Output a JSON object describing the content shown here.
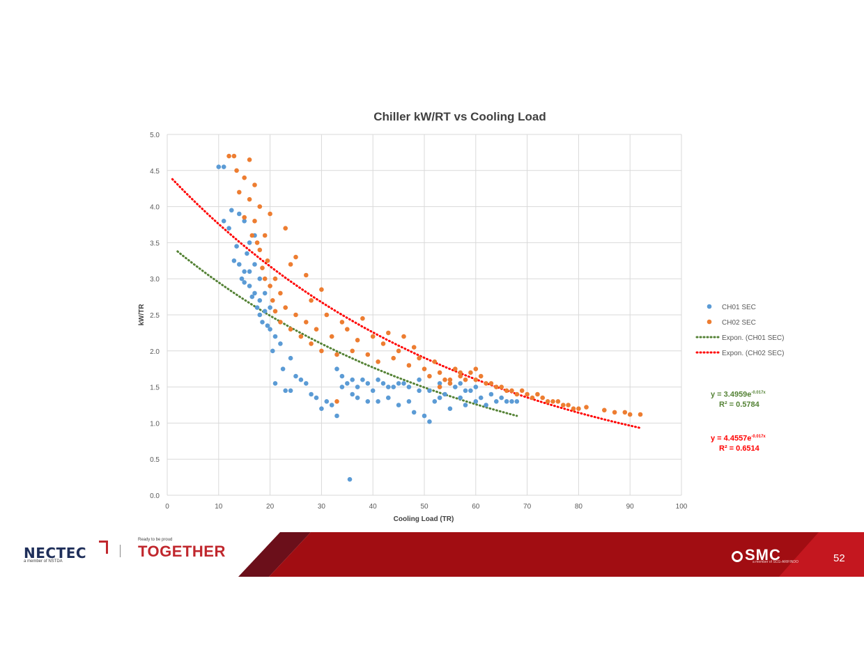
{
  "chart_data": {
    "type": "scatter",
    "title": "Chiller kW/RT vs Cooling Load",
    "xlabel": "Cooling Load (TR)",
    "ylabel": "kW/TR",
    "xlim": [
      0,
      100
    ],
    "ylim": [
      0,
      5
    ],
    "x_ticks": [
      "0",
      "10",
      "20",
      "30",
      "40",
      "50",
      "60",
      "70",
      "80",
      "90",
      "100"
    ],
    "y_ticks": [
      "0.0",
      "0.5",
      "1.0",
      "1.5",
      "2.0",
      "2.5",
      "3.0",
      "3.5",
      "4.0",
      "4.5",
      "5.0"
    ],
    "grid": true,
    "legend_position": "right",
    "series": [
      {
        "name": "CH01 SEC",
        "color": "#5b9bd5",
        "points": [
          [
            10,
            4.55
          ],
          [
            11,
            4.55
          ],
          [
            11,
            3.8
          ],
          [
            12,
            3.7
          ],
          [
            12.5,
            3.95
          ],
          [
            13,
            3.25
          ],
          [
            13.5,
            3.45
          ],
          [
            14,
            3.9
          ],
          [
            14,
            3.2
          ],
          [
            14.5,
            3.0
          ],
          [
            15,
            3.8
          ],
          [
            15,
            3.1
          ],
          [
            15,
            2.95
          ],
          [
            15.5,
            3.35
          ],
          [
            16,
            3.5
          ],
          [
            16,
            3.1
          ],
          [
            16,
            2.9
          ],
          [
            16.5,
            2.75
          ],
          [
            17,
            3.6
          ],
          [
            17,
            3.2
          ],
          [
            17,
            2.8
          ],
          [
            17.5,
            2.6
          ],
          [
            18,
            3.0
          ],
          [
            18,
            2.7
          ],
          [
            18,
            2.5
          ],
          [
            18.5,
            2.4
          ],
          [
            19,
            2.8
          ],
          [
            19,
            2.55
          ],
          [
            19.5,
            2.35
          ],
          [
            20,
            2.6
          ],
          [
            20,
            2.3
          ],
          [
            20.5,
            2.0
          ],
          [
            21,
            2.2
          ],
          [
            21,
            1.55
          ],
          [
            22,
            2.1
          ],
          [
            22.5,
            1.75
          ],
          [
            23,
            1.45
          ],
          [
            24,
            1.45
          ],
          [
            24,
            1.9
          ],
          [
            25,
            1.65
          ],
          [
            26,
            1.6
          ],
          [
            27,
            1.55
          ],
          [
            28,
            1.4
          ],
          [
            29,
            1.35
          ],
          [
            30,
            1.2
          ],
          [
            31,
            1.3
          ],
          [
            32,
            1.25
          ],
          [
            33,
            1.1
          ],
          [
            34,
            1.65
          ],
          [
            35,
            1.55
          ],
          [
            35.5,
            0.22
          ],
          [
            36,
            1.4
          ],
          [
            37,
            1.5
          ],
          [
            38,
            1.6
          ],
          [
            39,
            1.55
          ],
          [
            40,
            1.45
          ],
          [
            41,
            1.3
          ],
          [
            42,
            1.55
          ],
          [
            43,
            1.35
          ],
          [
            44,
            1.5
          ],
          [
            45,
            1.25
          ],
          [
            46,
            1.55
          ],
          [
            47,
            1.3
          ],
          [
            48,
            1.15
          ],
          [
            49,
            1.45
          ],
          [
            50,
            1.1
          ],
          [
            51,
            1.02
          ],
          [
            52,
            1.3
          ],
          [
            53,
            1.55
          ],
          [
            54,
            1.4
          ],
          [
            55,
            1.2
          ],
          [
            56,
            1.5
          ],
          [
            57,
            1.35
          ],
          [
            58,
            1.25
          ],
          [
            59,
            1.45
          ],
          [
            60,
            1.3
          ],
          [
            61,
            1.35
          ],
          [
            62,
            1.25
          ],
          [
            63,
            1.4
          ],
          [
            64,
            1.3
          ],
          [
            65,
            1.35
          ],
          [
            66,
            1.3
          ],
          [
            67,
            1.3
          ],
          [
            68,
            1.3
          ],
          [
            33,
            1.75
          ],
          [
            34,
            1.5
          ],
          [
            36,
            1.6
          ],
          [
            37,
            1.35
          ],
          [
            39,
            1.3
          ],
          [
            41,
            1.6
          ],
          [
            43,
            1.5
          ],
          [
            45,
            1.55
          ],
          [
            47,
            1.5
          ],
          [
            49,
            1.6
          ],
          [
            51,
            1.45
          ],
          [
            53,
            1.35
          ],
          [
            55,
            1.55
          ],
          [
            57,
            1.55
          ],
          [
            58,
            1.45
          ],
          [
            60,
            1.5
          ]
        ]
      },
      {
        "name": "CH02 SEC",
        "color": "#ed7d31",
        "points": [
          [
            12,
            4.7
          ],
          [
            13,
            4.7
          ],
          [
            13.5,
            4.5
          ],
          [
            14,
            4.2
          ],
          [
            15,
            4.4
          ],
          [
            15,
            3.85
          ],
          [
            16,
            4.65
          ],
          [
            16,
            4.1
          ],
          [
            16.5,
            3.6
          ],
          [
            17,
            4.3
          ],
          [
            17,
            3.8
          ],
          [
            17.5,
            3.5
          ],
          [
            18,
            4.0
          ],
          [
            18,
            3.4
          ],
          [
            18.5,
            3.15
          ],
          [
            19,
            3.6
          ],
          [
            19,
            3.0
          ],
          [
            19.5,
            3.25
          ],
          [
            20,
            3.9
          ],
          [
            20,
            2.9
          ],
          [
            20.5,
            2.7
          ],
          [
            21,
            3.0
          ],
          [
            21,
            2.55
          ],
          [
            22,
            2.8
          ],
          [
            22,
            2.4
          ],
          [
            23,
            3.7
          ],
          [
            23,
            2.6
          ],
          [
            24,
            2.3
          ],
          [
            24,
            3.2
          ],
          [
            25,
            3.3
          ],
          [
            25,
            2.5
          ],
          [
            26,
            2.2
          ],
          [
            27,
            3.05
          ],
          [
            27,
            2.4
          ],
          [
            28,
            2.7
          ],
          [
            28,
            2.1
          ],
          [
            29,
            2.3
          ],
          [
            30,
            2.85
          ],
          [
            30,
            2.0
          ],
          [
            31,
            2.5
          ],
          [
            32,
            2.2
          ],
          [
            33,
            1.95
          ],
          [
            33,
            1.3
          ],
          [
            34,
            2.4
          ],
          [
            35,
            2.3
          ],
          [
            36,
            2.0
          ],
          [
            37,
            2.15
          ],
          [
            38,
            2.45
          ],
          [
            39,
            1.95
          ],
          [
            40,
            2.2
          ],
          [
            41,
            1.85
          ],
          [
            42,
            2.1
          ],
          [
            43,
            2.25
          ],
          [
            44,
            1.9
          ],
          [
            45,
            2.0
          ],
          [
            46,
            2.2
          ],
          [
            47,
            1.8
          ],
          [
            48,
            2.05
          ],
          [
            49,
            1.9
          ],
          [
            50,
            1.75
          ],
          [
            51,
            1.65
          ],
          [
            52,
            1.85
          ],
          [
            53,
            1.7
          ],
          [
            54,
            1.6
          ],
          [
            55,
            1.55
          ],
          [
            56,
            1.75
          ],
          [
            57,
            1.65
          ],
          [
            58,
            1.6
          ],
          [
            59,
            1.7
          ],
          [
            60,
            1.6
          ],
          [
            61,
            1.65
          ],
          [
            62,
            1.55
          ],
          [
            63,
            1.55
          ],
          [
            64,
            1.5
          ],
          [
            65,
            1.5
          ],
          [
            66,
            1.45
          ],
          [
            67,
            1.45
          ],
          [
            68,
            1.4
          ],
          [
            69,
            1.45
          ],
          [
            70,
            1.4
          ],
          [
            71,
            1.35
          ],
          [
            72,
            1.4
          ],
          [
            73,
            1.35
          ],
          [
            74,
            1.3
          ],
          [
            75,
            1.3
          ],
          [
            76,
            1.3
          ],
          [
            77,
            1.25
          ],
          [
            78,
            1.25
          ],
          [
            79,
            1.2
          ],
          [
            80,
            1.2
          ],
          [
            81.5,
            1.22
          ],
          [
            85,
            1.18
          ],
          [
            87,
            1.15
          ],
          [
            89,
            1.15
          ],
          [
            90,
            1.12
          ],
          [
            92,
            1.12
          ],
          [
            53,
            1.5
          ],
          [
            55,
            1.6
          ],
          [
            57,
            1.7
          ],
          [
            60,
            1.75
          ]
        ]
      }
    ],
    "trendlines": [
      {
        "name": "Expon. (CH01 SEC)",
        "color": "#548235",
        "a": 3.4959,
        "b": -0.017,
        "x_range": [
          2,
          68
        ]
      },
      {
        "name": "Expon. (CH02 SEC)",
        "color": "#ff0000",
        "a": 4.4557,
        "b": -0.017,
        "x_range": [
          1,
          92
        ]
      }
    ],
    "annotations": [
      {
        "color": "#548235",
        "equation": "y = 3.4959e",
        "exponent": "-0.017x",
        "r2": "R² = 0.5784"
      },
      {
        "color": "#ff0000",
        "equation": "y = 4.4557e",
        "exponent": "-0.017x",
        "r2": "R² = 0.6514"
      }
    ]
  },
  "footer": {
    "nectec": "NECTEC",
    "nectec_sub": "a member of NSTDA",
    "together_sub": "Ready to be proud",
    "together": "TOGETHER",
    "smc": "SMC",
    "smc_sub": "a member of SCG-ARIFINDO",
    "page_number": "52"
  }
}
